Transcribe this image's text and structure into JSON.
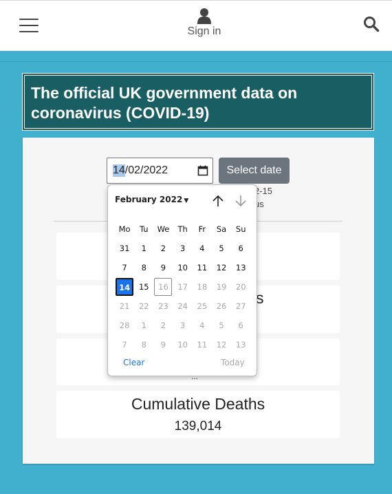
{
  "header": {
    "sign_in_label": "Sign in"
  },
  "title": "The official UK government data on coronavirus (COVID-19)",
  "date_selector": {
    "date_day": "14",
    "date_rest": "/02/2022",
    "select_button_label": "Select date",
    "partial_note_line1": "2-15",
    "partial_note_line2": "us"
  },
  "stats": {
    "partial_title_fragment": "s",
    "partial_value_fragment": "...",
    "cumulative_deaths_title": "Cumulative Deaths",
    "cumulative_deaths_value": "139,014"
  },
  "datepicker": {
    "month_label": "February 2022",
    "weekdays": [
      "Mo",
      "Tu",
      "We",
      "Th",
      "Fr",
      "Sa",
      "Su"
    ],
    "weeks": [
      [
        "31",
        "1",
        "2",
        "3",
        "4",
        "5",
        "6"
      ],
      [
        "7",
        "8",
        "9",
        "10",
        "11",
        "12",
        "13"
      ],
      [
        "14",
        "15",
        "16",
        "17",
        "18",
        "19",
        "20"
      ],
      [
        "21",
        "22",
        "23",
        "24",
        "25",
        "26",
        "27"
      ],
      [
        "28",
        "1",
        "2",
        "3",
        "4",
        "5",
        "6"
      ],
      [
        "7",
        "8",
        "9",
        "10",
        "11",
        "12",
        "13"
      ]
    ],
    "selected_day": "14",
    "today_day": "16",
    "clear_label": "Clear",
    "today_label": "Today"
  },
  "colors": {
    "background": "#41b0cf",
    "title_bg": "#185e62",
    "select_button": "#6c757d",
    "selected_day": "#1a73e8"
  }
}
